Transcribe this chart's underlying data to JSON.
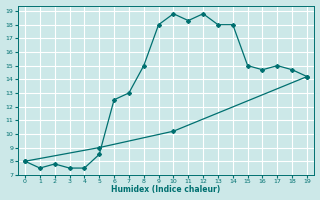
{
  "xlabel": "Humidex (Indice chaleur)",
  "bg_color": "#cce8e8",
  "grid_color": "#ffffff",
  "line_color": "#007070",
  "curve1_x": [
    0,
    1,
    2,
    3,
    4,
    5,
    6,
    7,
    8,
    9,
    10,
    11,
    12,
    13,
    14,
    15,
    16,
    17,
    18,
    19
  ],
  "curve1_y": [
    8.0,
    7.5,
    7.8,
    7.5,
    7.5,
    8.5,
    12.5,
    13.0,
    15.0,
    18.0,
    18.8,
    18.3,
    18.8,
    18.0,
    18.0,
    15.0,
    14.7,
    15.0,
    14.7,
    14.2
  ],
  "curve2_x": [
    0,
    5,
    10,
    19
  ],
  "curve2_y": [
    8.0,
    9.0,
    10.2,
    14.2
  ],
  "xlim": [
    -0.5,
    19.5
  ],
  "ylim": [
    7,
    19.4
  ],
  "xticks": [
    0,
    1,
    2,
    3,
    4,
    5,
    6,
    7,
    8,
    9,
    10,
    11,
    12,
    13,
    14,
    15,
    16,
    17,
    18,
    19
  ],
  "yticks": [
    7,
    8,
    9,
    10,
    11,
    12,
    13,
    14,
    15,
    16,
    17,
    18,
    19
  ]
}
